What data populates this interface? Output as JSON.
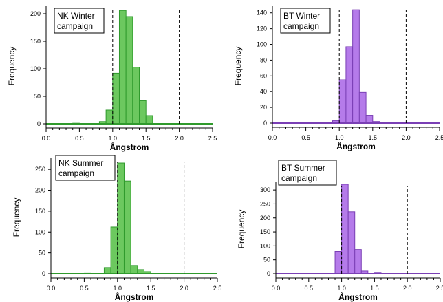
{
  "colors": {
    "green_fill": "#6cc85f",
    "green_stroke": "#2f9a2c",
    "purple_fill": "#b57bea",
    "purple_stroke": "#7a3fb5"
  },
  "chart_data": [
    {
      "type": "bar",
      "title": "NK Winter\ncampaign",
      "xlabel": "Ångstrom",
      "ylabel": "Frequency",
      "xlim": [
        0.0,
        2.5
      ],
      "ylim": [
        0,
        210
      ],
      "x_ticks": [
        "0.0",
        "0.5",
        "1.0",
        "1.5",
        "2.0",
        "2.5"
      ],
      "y_ticks": [
        "0",
        "50",
        "100",
        "150",
        "200"
      ],
      "y_tick_values": [
        0,
        50,
        100,
        150,
        200
      ],
      "vlines": [
        1.0,
        2.0
      ],
      "bin_width": 0.1,
      "bin_centers": [
        0.45,
        0.85,
        0.95,
        1.05,
        1.15,
        1.25,
        1.35,
        1.45,
        1.55
      ],
      "values": [
        1,
        4,
        25,
        92,
        206,
        195,
        103,
        42,
        15
      ],
      "color": "green"
    },
    {
      "type": "bar",
      "title": "BT Winter\ncampaign",
      "xlabel": "Ångstrom",
      "ylabel": "Frequency",
      "xlim": [
        0.0,
        2.5
      ],
      "ylim": [
        0,
        145
      ],
      "x_ticks": [
        "0.0",
        "0.5",
        "1.0",
        "1.5",
        "2.0",
        "2.5"
      ],
      "y_ticks": [
        "0",
        "20",
        "40",
        "60",
        "80",
        "100",
        "120",
        "140"
      ],
      "y_tick_values": [
        0,
        20,
        40,
        60,
        80,
        100,
        120,
        140
      ],
      "vlines": [
        1.0,
        2.0
      ],
      "bin_width": 0.1,
      "bin_centers": [
        0.75,
        0.95,
        1.05,
        1.15,
        1.25,
        1.35,
        1.45,
        1.55
      ],
      "values": [
        1,
        3,
        55,
        97,
        144,
        39,
        10,
        2
      ],
      "color": "purple"
    },
    {
      "type": "bar",
      "title": "NK Summer\ncampaign",
      "xlabel": "Ångstrom",
      "ylabel": "Frequency",
      "xlim": [
        0.0,
        2.5
      ],
      "ylim": [
        0,
        270
      ],
      "x_ticks": [
        "0.0",
        "0.5",
        "1.0",
        "1.5",
        "2.0",
        "2.5"
      ],
      "y_ticks": [
        "0",
        "50",
        "100",
        "150",
        "200",
        "250"
      ],
      "y_tick_values": [
        0,
        50,
        100,
        150,
        200,
        250
      ],
      "vlines": [
        1.0,
        2.0
      ],
      "bin_width": 0.1,
      "bin_centers": [
        0.55,
        0.85,
        0.95,
        1.05,
        1.15,
        1.25,
        1.35,
        1.45
      ],
      "values": [
        1,
        15,
        112,
        265,
        222,
        20,
        10,
        5
      ],
      "color": "green"
    },
    {
      "type": "bar",
      "title": "BT Summer\ncampaign",
      "xlabel": "Ångstrom",
      "ylabel": "Frequency",
      "xlim": [
        0.0,
        2.5
      ],
      "ylim": [
        0,
        320
      ],
      "x_ticks": [
        "0.0",
        "0.5",
        "1.0",
        "1.5",
        "2.0",
        "2.5"
      ],
      "y_ticks": [
        "0",
        "50",
        "100",
        "150",
        "200",
        "250",
        "300"
      ],
      "y_tick_values": [
        0,
        50,
        100,
        150,
        200,
        250,
        300
      ],
      "vlines": [
        1.0,
        2.0
      ],
      "bin_width": 0.1,
      "bin_centers": [
        0.95,
        1.05,
        1.15,
        1.25,
        1.35,
        1.55
      ],
      "values": [
        80,
        320,
        222,
        87,
        10,
        3
      ],
      "color": "purple"
    }
  ]
}
